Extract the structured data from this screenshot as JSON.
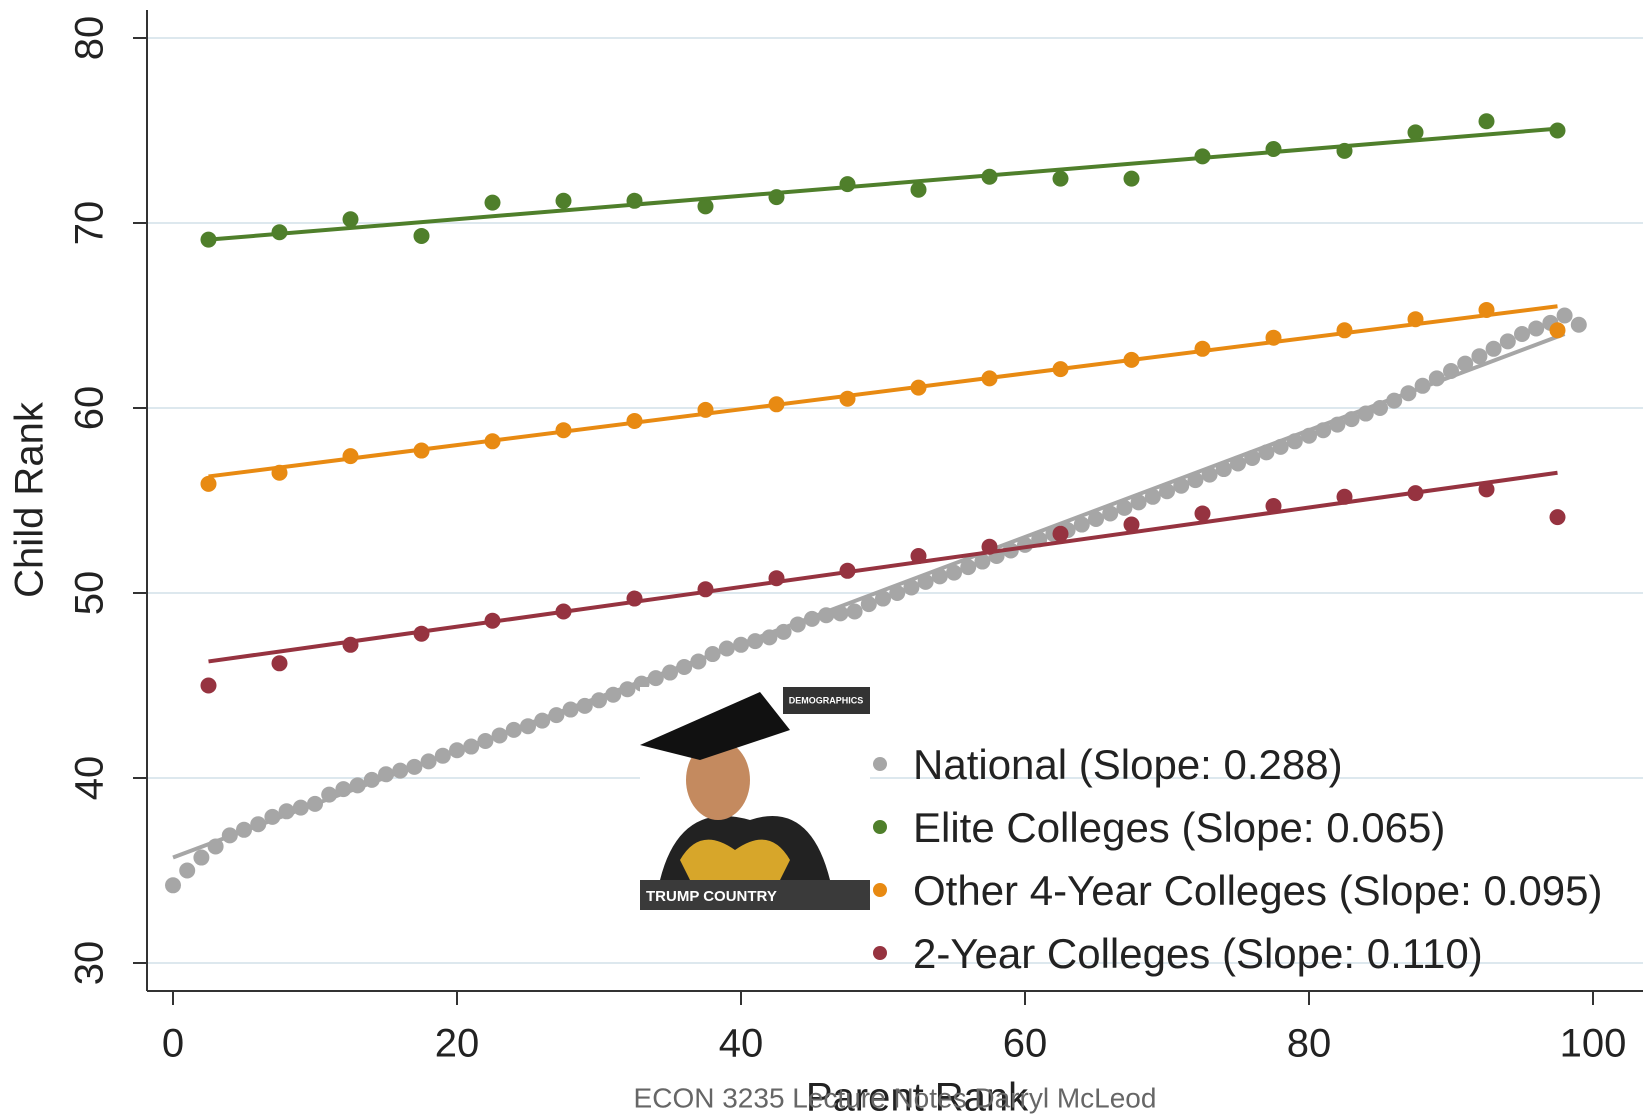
{
  "chart_data": {
    "type": "scatter",
    "x_label": "Parent Rank",
    "y_label": "Child Rank",
    "xlim": [
      -1,
      102
    ],
    "ylim": [
      28.5,
      81.5
    ],
    "xticks": [
      0,
      20,
      40,
      60,
      80,
      100
    ],
    "yticks": [
      30,
      40,
      50,
      60,
      70,
      80
    ],
    "grid": true,
    "series": [
      {
        "name": "National (Slope: 0.288)",
        "color": "#a6a6a6",
        "x": [
          0,
          1,
          2,
          3,
          4,
          5,
          6,
          7,
          8,
          9,
          10,
          11,
          12,
          13,
          14,
          15,
          16,
          17,
          18,
          19,
          20,
          21,
          22,
          23,
          24,
          25,
          26,
          27,
          28,
          29,
          30,
          31,
          32,
          33,
          34,
          35,
          36,
          37,
          38,
          39,
          40,
          41,
          42,
          43,
          44,
          45,
          46,
          47,
          48,
          49,
          50,
          51,
          52,
          53,
          54,
          55,
          56,
          57,
          58,
          59,
          60,
          61,
          62,
          63,
          64,
          65,
          66,
          67,
          68,
          69,
          70,
          71,
          72,
          73,
          74,
          75,
          76,
          77,
          78,
          79,
          80,
          81,
          82,
          83,
          84,
          85,
          86,
          87,
          88,
          89,
          90,
          91,
          92,
          93,
          94,
          95,
          96,
          97,
          98,
          99
        ],
        "values": [
          34.2,
          35.0,
          35.7,
          36.3,
          36.9,
          37.2,
          37.5,
          37.9,
          38.2,
          38.4,
          38.6,
          39.1,
          39.4,
          39.6,
          39.9,
          40.2,
          40.4,
          40.6,
          40.9,
          41.2,
          41.5,
          41.7,
          42.0,
          42.3,
          42.6,
          42.8,
          43.1,
          43.4,
          43.7,
          43.9,
          44.2,
          44.5,
          44.8,
          45.1,
          45.4,
          45.7,
          46.0,
          46.3,
          46.7,
          47.0,
          47.2,
          47.4,
          47.6,
          47.9,
          48.3,
          48.6,
          48.8,
          48.9,
          49.0,
          49.4,
          49.7,
          50.0,
          50.3,
          50.6,
          50.9,
          51.1,
          51.4,
          51.7,
          52.0,
          52.3,
          52.6,
          52.9,
          53.2,
          53.4,
          53.7,
          54.0,
          54.3,
          54.6,
          54.9,
          55.2,
          55.5,
          55.8,
          56.1,
          56.4,
          56.7,
          57.0,
          57.3,
          57.6,
          57.9,
          58.2,
          58.5,
          58.8,
          59.1,
          59.4,
          59.7,
          60.0,
          60.4,
          60.8,
          61.2,
          61.6,
          62.0,
          62.4,
          62.8,
          63.2,
          63.6,
          64.0,
          64.3,
          64.6,
          65.0,
          64.5
        ],
        "fit_x": [
          0,
          98
        ],
        "fit_y": [
          35.7,
          64.0
        ]
      },
      {
        "name": "Elite Colleges (Slope: 0.065)",
        "color": "#4f7f2b",
        "x": [
          2.5,
          7.5,
          12.5,
          17.5,
          22.5,
          27.5,
          32.5,
          37.5,
          42.5,
          47.5,
          52.5,
          57.5,
          62.5,
          67.5,
          72.5,
          77.5,
          82.5,
          87.5,
          92.5,
          97.5
        ],
        "values": [
          69.1,
          69.5,
          70.2,
          69.3,
          71.1,
          71.2,
          71.2,
          70.9,
          71.4,
          72.1,
          71.8,
          72.5,
          72.4,
          72.4,
          73.6,
          74.0,
          73.9,
          74.9,
          75.5,
          75.0
        ],
        "fit_x": [
          2.5,
          97.5
        ],
        "fit_y": [
          69.1,
          75.1
        ]
      },
      {
        "name": "Other 4-Year Colleges (Slope: 0.095)",
        "color": "#e88a12",
        "x": [
          2.5,
          7.5,
          12.5,
          17.5,
          22.5,
          27.5,
          32.5,
          37.5,
          42.5,
          47.5,
          52.5,
          57.5,
          62.5,
          67.5,
          72.5,
          77.5,
          82.5,
          87.5,
          92.5,
          97.5
        ],
        "values": [
          55.9,
          56.5,
          57.4,
          57.7,
          58.2,
          58.8,
          59.3,
          59.9,
          60.2,
          60.5,
          61.1,
          61.6,
          62.1,
          62.6,
          63.2,
          63.8,
          64.2,
          64.8,
          65.3,
          64.2
        ],
        "fit_x": [
          2.5,
          97.5
        ],
        "fit_y": [
          56.3,
          65.5
        ]
      },
      {
        "name": "2-Year Colleges (Slope: 0.110)",
        "color": "#963340",
        "x": [
          2.5,
          7.5,
          12.5,
          17.5,
          22.5,
          27.5,
          32.5,
          37.5,
          42.5,
          47.5,
          52.5,
          57.5,
          62.5,
          67.5,
          72.5,
          77.5,
          82.5,
          87.5,
          92.5,
          97.5
        ],
        "values": [
          45.0,
          46.2,
          47.2,
          47.8,
          48.5,
          49.0,
          49.7,
          50.2,
          50.8,
          51.2,
          52.0,
          52.5,
          53.2,
          53.7,
          54.3,
          54.7,
          55.2,
          55.4,
          55.6,
          54.1
        ],
        "fit_x": [
          2.5,
          97.5
        ],
        "fit_y": [
          46.3,
          56.5
        ]
      }
    ]
  },
  "overlay_image": {
    "badge": "DEMOGRAPHICS",
    "caption": "TRUMP COUNTRY"
  },
  "footer": "ECON 3235 Lecture Notes Darryl McLeod"
}
